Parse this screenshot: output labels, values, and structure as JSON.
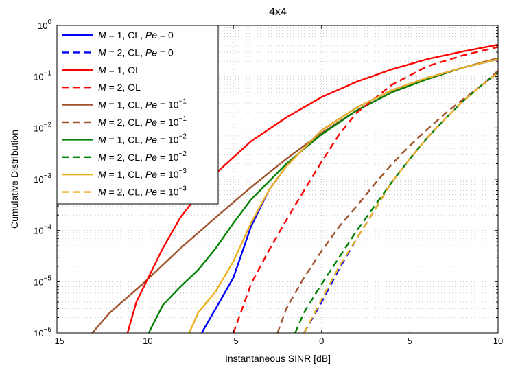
{
  "chart_data": {
    "type": "line",
    "title": "4x4",
    "xlabel": "Instantaneous SINR [dB]",
    "ylabel": "Cumulative Distribution",
    "xlim": [
      -15,
      10
    ],
    "ylim": [
      1e-06,
      1
    ],
    "yscale": "log",
    "grid": "dotted, major and minor",
    "legend_position": "top-left",
    "x_ticks": [
      "−15",
      "−10",
      "−5",
      "0",
      "5",
      "10"
    ],
    "x_tick_values": [
      -15,
      -10,
      -5,
      0,
      5,
      10
    ],
    "y_ticks": [
      {
        "base": "10",
        "exp": "−6",
        "value": 1e-06
      },
      {
        "base": "10",
        "exp": "−5",
        "value": 1e-05
      },
      {
        "base": "10",
        "exp": "−4",
        "value": 0.0001
      },
      {
        "base": "10",
        "exp": "−3",
        "value": 0.001
      },
      {
        "base": "10",
        "exp": "−2",
        "value": 0.01
      },
      {
        "base": "10",
        "exp": "−1",
        "value": 0.1
      },
      {
        "base": "10",
        "exp": "0",
        "value": 1
      }
    ],
    "series": [
      {
        "name": "M = 1, CL, Pe = 0",
        "color": "#0000ff",
        "dash": "solid",
        "x": [
          -6.8,
          -6.0,
          -5.5,
          -5.0,
          -4.0,
          -3.0,
          -2.0,
          0,
          2,
          4,
          6,
          8,
          10
        ],
        "y": [
          1e-06,
          3e-06,
          6e-06,
          1.2e-05,
          0.00012,
          0.0006,
          0.0018,
          0.009,
          0.025,
          0.055,
          0.095,
          0.15,
          0.22
        ]
      },
      {
        "name": "M = 2, CL, Pe = 0",
        "color": "#0000ff",
        "dash": "dashed",
        "x": [
          -1.0,
          0,
          1,
          2,
          3,
          4,
          5,
          6,
          7,
          8,
          9,
          10
        ],
        "y": [
          1e-06,
          4e-06,
          1.8e-05,
          7e-05,
          0.00025,
          0.0009,
          0.0025,
          0.0065,
          0.015,
          0.033,
          0.065,
          0.12
        ]
      },
      {
        "name": "M = 1, OL",
        "color": "#ff0000",
        "dash": "solid",
        "x": [
          -11.0,
          -10.5,
          -10.0,
          -9.0,
          -8.0,
          -7.0,
          -6.0,
          -4.0,
          -2.0,
          0,
          2,
          4,
          6,
          8,
          10
        ],
        "y": [
          1e-06,
          4e-06,
          9e-06,
          4.5e-05,
          0.00018,
          0.0005,
          0.0013,
          0.0055,
          0.016,
          0.04,
          0.08,
          0.14,
          0.22,
          0.31,
          0.42
        ]
      },
      {
        "name": "M = 2, OL",
        "color": "#ff0000",
        "dash": "dashed",
        "x": [
          -5.0,
          -4.5,
          -4.0,
          -3.0,
          -2.0,
          -1.0,
          0,
          1,
          2,
          4,
          6,
          8,
          10
        ],
        "y": [
          1e-06,
          3e-06,
          9e-06,
          4e-05,
          0.00016,
          0.0006,
          0.0022,
          0.0075,
          0.02,
          0.07,
          0.16,
          0.26,
          0.38
        ]
      },
      {
        "name": "M = 1, CL, Pe = 10^-1",
        "color": "#a0522d",
        "dash": "solid",
        "x": [
          -13.0,
          -12.0,
          -11.0,
          -10.0,
          -8.0,
          -6.0,
          -4.0,
          -2.0,
          0,
          2,
          4,
          6,
          8,
          10
        ],
        "y": [
          1e-06,
          2.5e-06,
          5e-06,
          1e-05,
          4.5e-05,
          0.00018,
          0.0007,
          0.0025,
          0.008,
          0.022,
          0.05,
          0.09,
          0.15,
          0.23
        ]
      },
      {
        "name": "M = 2, CL, Pe = 10^-1",
        "color": "#a0522d",
        "dash": "dashed",
        "x": [
          -2.5,
          -2.0,
          -1.0,
          0,
          1,
          2,
          3,
          4,
          5,
          6,
          7,
          8,
          9,
          10
        ],
        "y": [
          1e-06,
          3e-06,
          1.2e-05,
          4e-05,
          0.00012,
          0.0003,
          0.0008,
          0.002,
          0.0045,
          0.0095,
          0.019,
          0.036,
          0.065,
          0.13
        ]
      },
      {
        "name": "M = 1, CL, Pe = 10^-2",
        "color": "#008000",
        "dash": "solid",
        "x": [
          -9.8,
          -9.0,
          -8.0,
          -7.0,
          -6.0,
          -5.0,
          -4.0,
          -2.0,
          0,
          2,
          4,
          6,
          8,
          10
        ],
        "y": [
          1e-06,
          3.5e-06,
          8e-06,
          1.7e-05,
          4.5e-05,
          0.00014,
          0.0004,
          0.002,
          0.0075,
          0.022,
          0.05,
          0.09,
          0.15,
          0.22
        ]
      },
      {
        "name": "M = 2, CL, Pe = 10^-2",
        "color": "#008000",
        "dash": "dashed",
        "x": [
          -1.5,
          -1.0,
          0,
          1,
          2,
          3,
          4,
          5,
          6,
          7,
          8,
          9,
          10
        ],
        "y": [
          1e-06,
          2.5e-06,
          9e-06,
          3e-05,
          0.0001,
          0.0003,
          0.0009,
          0.0025,
          0.0065,
          0.015,
          0.033,
          0.065,
          0.12
        ]
      },
      {
        "name": "M = 1, CL, Pe = 10^-3",
        "color": "#edb120",
        "dash": "solid",
        "x": [
          -7.5,
          -7.0,
          -6.0,
          -5.0,
          -4.0,
          -3.0,
          -2.0,
          0,
          2,
          4,
          6,
          8,
          10
        ],
        "y": [
          1e-06,
          2.5e-06,
          6.5e-06,
          2.5e-05,
          0.00014,
          0.0006,
          0.0018,
          0.009,
          0.025,
          0.055,
          0.095,
          0.15,
          0.22
        ]
      },
      {
        "name": "M = 2, CL, Pe = 10^-3",
        "color": "#edb120",
        "dash": "dashed",
        "x": [
          -1.0,
          0,
          1,
          2,
          3,
          4,
          5,
          6,
          7,
          8,
          9,
          10
        ],
        "y": [
          1e-06,
          4.5e-06,
          2e-05,
          7e-05,
          0.00025,
          0.0009,
          0.0025,
          0.0065,
          0.015,
          0.033,
          0.065,
          0.12
        ]
      }
    ],
    "legend": [
      {
        "m": "M",
        "rest": " = 1, CL, ",
        "pe": "Pe",
        "eq": " = ",
        "val": "0",
        "sup": ""
      },
      {
        "m": "M",
        "rest": " = 2, CL, ",
        "pe": "Pe",
        "eq": " = ",
        "val": "0",
        "sup": ""
      },
      {
        "m": "M",
        "rest": " = 1, OL",
        "pe": "",
        "eq": "",
        "val": "",
        "sup": ""
      },
      {
        "m": "M",
        "rest": " = 2, OL",
        "pe": "",
        "eq": "",
        "val": "",
        "sup": ""
      },
      {
        "m": "M",
        "rest": " = 1, CL, ",
        "pe": "Pe",
        "eq": " = ",
        "val": "10",
        "sup": "−1"
      },
      {
        "m": "M",
        "rest": " = 2, CL, ",
        "pe": "Pe",
        "eq": " = ",
        "val": "10",
        "sup": "−1"
      },
      {
        "m": "M",
        "rest": " = 1, CL, ",
        "pe": "Pe",
        "eq": " = ",
        "val": "10",
        "sup": "−2"
      },
      {
        "m": "M",
        "rest": " = 2, CL, ",
        "pe": "Pe",
        "eq": " = ",
        "val": "10",
        "sup": "−2"
      },
      {
        "m": "M",
        "rest": " = 1, CL, ",
        "pe": "Pe",
        "eq": " = ",
        "val": "10",
        "sup": "−3"
      },
      {
        "m": "M",
        "rest": " = 2, CL, ",
        "pe": "Pe",
        "eq": " = ",
        "val": "10",
        "sup": "−3"
      }
    ]
  }
}
